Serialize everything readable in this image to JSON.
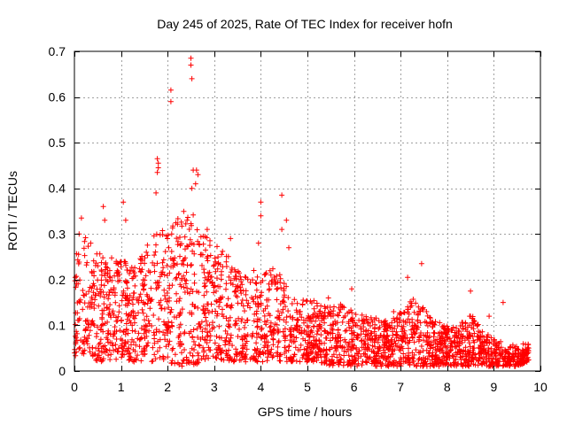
{
  "chart_data": {
    "type": "scatter",
    "title": "Day 245 of 2025, Rate Of TEC Index for receiver hofn",
    "xlabel": "GPS time / hours",
    "ylabel": "ROTI / TECUs",
    "xlim": [
      0,
      10
    ],
    "ylim": [
      0,
      0.7
    ],
    "xticks": [
      "0",
      "1",
      "2",
      "3",
      "4",
      "5",
      "6",
      "7",
      "8",
      "9",
      "10"
    ],
    "yticks": [
      "0",
      "0.1",
      "0.2",
      "0.3",
      "0.4",
      "0.5",
      "0.6",
      "0.7"
    ],
    "grid": true,
    "marker": "plus",
    "color": "#ff0000",
    "envelope": [
      [
        0.0,
        0.03,
        0.26
      ],
      [
        0.25,
        0.03,
        0.3
      ],
      [
        0.5,
        0.02,
        0.26
      ],
      [
        0.75,
        0.02,
        0.25
      ],
      [
        1.0,
        0.03,
        0.24
      ],
      [
        1.25,
        0.02,
        0.24
      ],
      [
        1.5,
        0.02,
        0.26
      ],
      [
        1.75,
        0.02,
        0.32
      ],
      [
        2.0,
        0.02,
        0.3
      ],
      [
        2.25,
        0.01,
        0.34
      ],
      [
        2.5,
        0.01,
        0.37
      ],
      [
        2.75,
        0.02,
        0.3
      ],
      [
        3.0,
        0.03,
        0.28
      ],
      [
        3.25,
        0.02,
        0.26
      ],
      [
        3.5,
        0.02,
        0.22
      ],
      [
        3.75,
        0.02,
        0.2
      ],
      [
        4.0,
        0.02,
        0.21
      ],
      [
        4.25,
        0.02,
        0.23
      ],
      [
        4.5,
        0.02,
        0.2
      ],
      [
        4.75,
        0.02,
        0.17
      ],
      [
        5.0,
        0.02,
        0.16
      ],
      [
        5.25,
        0.02,
        0.15
      ],
      [
        5.5,
        0.01,
        0.14
      ],
      [
        5.75,
        0.01,
        0.15
      ],
      [
        6.0,
        0.01,
        0.13
      ],
      [
        6.25,
        0.01,
        0.12
      ],
      [
        6.5,
        0.01,
        0.12
      ],
      [
        6.75,
        0.01,
        0.11
      ],
      [
        7.0,
        0.01,
        0.13
      ],
      [
        7.25,
        0.01,
        0.16
      ],
      [
        7.5,
        0.01,
        0.14
      ],
      [
        7.75,
        0.01,
        0.11
      ],
      [
        8.0,
        0.01,
        0.1
      ],
      [
        8.25,
        0.01,
        0.1
      ],
      [
        8.5,
        0.01,
        0.13
      ],
      [
        8.75,
        0.01,
        0.09
      ],
      [
        9.0,
        0.01,
        0.07
      ],
      [
        9.25,
        0.01,
        0.06
      ],
      [
        9.5,
        0.01,
        0.06
      ],
      [
        9.75,
        0.02,
        0.06
      ]
    ],
    "outliers": [
      [
        2.5,
        0.685
      ],
      [
        2.5,
        0.67
      ],
      [
        2.52,
        0.64
      ],
      [
        2.07,
        0.615
      ],
      [
        2.07,
        0.59
      ],
      [
        1.78,
        0.465
      ],
      [
        1.8,
        0.455
      ],
      [
        1.8,
        0.445
      ],
      [
        1.78,
        0.435
      ],
      [
        1.75,
        0.39
      ],
      [
        2.55,
        0.44
      ],
      [
        2.62,
        0.44
      ],
      [
        2.65,
        0.43
      ],
      [
        2.6,
        0.41
      ],
      [
        2.52,
        0.4
      ],
      [
        4.45,
        0.385
      ],
      [
        4.0,
        0.37
      ],
      [
        4.0,
        0.34
      ],
      [
        1.05,
        0.37
      ],
      [
        0.62,
        0.36
      ],
      [
        0.65,
        0.33
      ],
      [
        0.15,
        0.335
      ],
      [
        0.1,
        0.3
      ],
      [
        2.85,
        0.31
      ],
      [
        3.35,
        0.29
      ],
      [
        3.95,
        0.28
      ],
      [
        4.55,
        0.33
      ],
      [
        4.45,
        0.31
      ],
      [
        4.6,
        0.27
      ],
      [
        7.45,
        0.235
      ],
      [
        7.15,
        0.205
      ],
      [
        8.5,
        0.175
      ],
      [
        9.2,
        0.15
      ],
      [
        5.95,
        0.18
      ],
      [
        5.45,
        0.16
      ],
      [
        6.85,
        0.13
      ],
      [
        8.9,
        0.12
      ],
      [
        3.85,
        0.22
      ],
      [
        0.35,
        0.28
      ],
      [
        1.1,
        0.33
      ]
    ]
  }
}
